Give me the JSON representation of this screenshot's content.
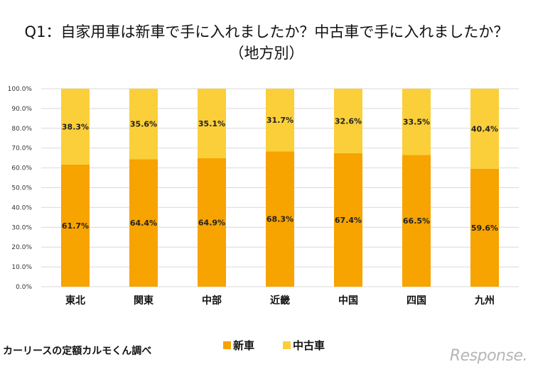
{
  "chart_data": {
    "type": "bar",
    "stacked": true,
    "title_line1": "Q1：自家用車は新車で手に入れましたか？中古車で手に入れましたか？",
    "title_line2": "（地方別）",
    "categories": [
      "東北",
      "関東",
      "中部",
      "近畿",
      "中国",
      "四国",
      "九州"
    ],
    "series": [
      {
        "name": "新車",
        "color": "#F7A300",
        "values": [
          61.7,
          64.4,
          64.9,
          68.3,
          67.4,
          66.5,
          59.6
        ]
      },
      {
        "name": "中古車",
        "color": "#FBCF3A",
        "values": [
          38.3,
          35.6,
          35.1,
          31.7,
          32.6,
          33.5,
          40.4
        ]
      }
    ],
    "data_labels": [
      [
        "61.7%",
        "64.4%",
        "64.9%",
        "68.3%",
        "67.4%",
        "66.5%",
        "59.6%"
      ],
      [
        "38.3%",
        "35.6%",
        "35.1%",
        "31.7%",
        "32.6%",
        "33.5%",
        "40.4%"
      ]
    ],
    "ylim": [
      0,
      100
    ],
    "yticks": [
      "0.0%",
      "10.0%",
      "20.0%",
      "30.0%",
      "40.0%",
      "50.0%",
      "60.0%",
      "70.0%",
      "80.0%",
      "90.0%",
      "100.0%"
    ],
    "grid": true,
    "legend_position": "bottom"
  },
  "footer": {
    "source": "カーリースの定額カルモくん調べ"
  },
  "watermark": "Response."
}
